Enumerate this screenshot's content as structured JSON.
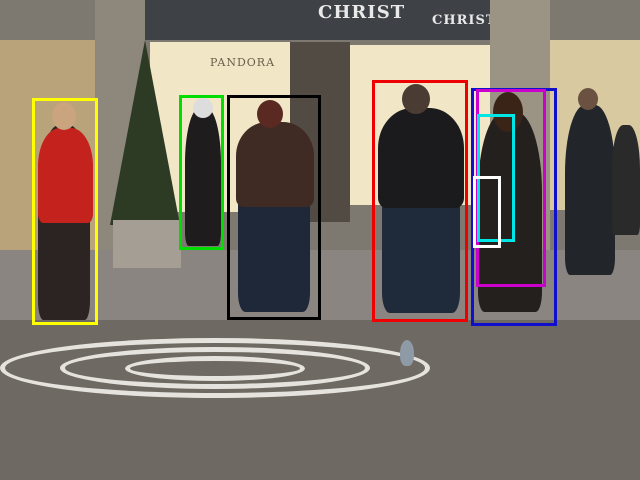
{
  "scene": {
    "store_sign_main": "CHRIST",
    "store_sign_secondary": "CHRIST",
    "window_text": "PANDORA"
  },
  "detections": [
    {
      "id": "pedestrian-red-jacket",
      "color": "#ffff00"
    },
    {
      "id": "pedestrian-window",
      "color": "#00dd00"
    },
    {
      "id": "pedestrian-brown-jacket",
      "color": "#000000"
    },
    {
      "id": "pedestrian-black-hoodie",
      "color": "#ee0000"
    },
    {
      "id": "pedestrian-long-hair",
      "color": "#1010cc"
    },
    {
      "id": "pedestrian-long-hair-inner",
      "color": "#cc00cc"
    },
    {
      "id": "pedestrian-partial",
      "color": "#00e5e5"
    },
    {
      "id": "bag-detection",
      "color": "#ffffff"
    }
  ]
}
